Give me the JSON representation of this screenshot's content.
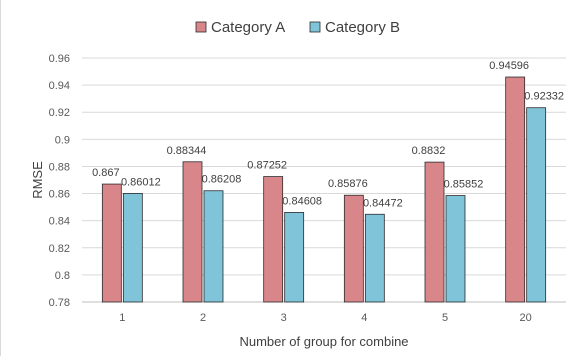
{
  "chart_data": {
    "type": "bar",
    "title": "",
    "xlabel": "Number of group for combine",
    "ylabel": "RMSE",
    "categories": [
      "1",
      "2",
      "3",
      "4",
      "5",
      "20"
    ],
    "series": [
      {
        "name": "Category A",
        "values": [
          0.867,
          0.88344,
          0.87252,
          0.85876,
          0.8832,
          0.94596
        ]
      },
      {
        "name": "Category B",
        "values": [
          0.86012,
          0.86208,
          0.84608,
          0.84472,
          0.85852,
          0.92332
        ]
      }
    ],
    "data_labels": [
      [
        "0.867",
        "0.88344",
        "0.87252",
        "0.85876",
        "0.8832",
        "0.94596"
      ],
      [
        "0.86012",
        "0.86208",
        "0.84608",
        "0.84472",
        "0.85852",
        "0.92332"
      ]
    ],
    "yticks": [
      "0.78",
      "0.8",
      "0.82",
      "0.84",
      "0.86",
      "0.88",
      "0.9",
      "0.92",
      "0.94",
      "0.96"
    ],
    "ylim": [
      0.78,
      0.96
    ],
    "grid": true,
    "legend_position": "top",
    "colors": {
      "series": [
        "#d9868a",
        "#7fc4d9"
      ],
      "series_stroke": [
        "#2b2b2b",
        "#2b2b2b"
      ],
      "grid": "#d9d9d9",
      "axis": "#bfbfbf"
    }
  }
}
